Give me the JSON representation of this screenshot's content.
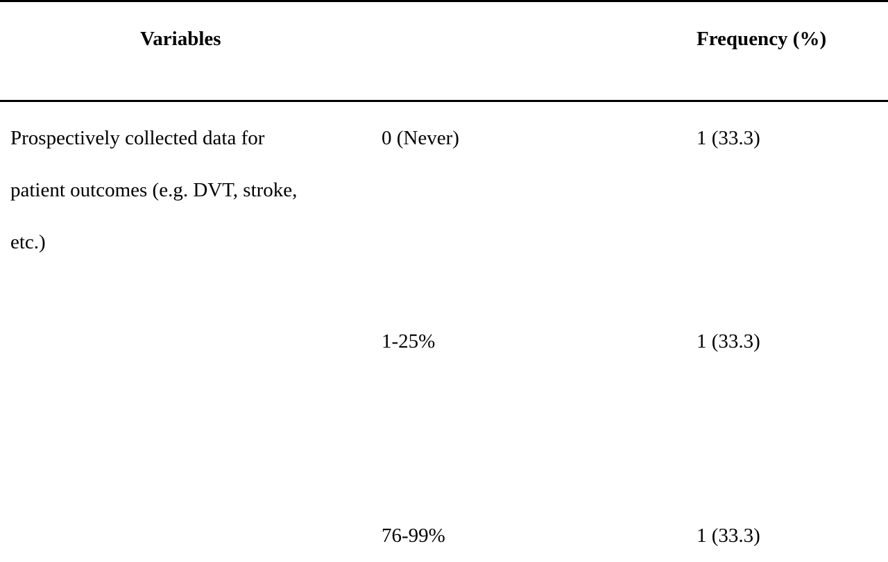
{
  "table": {
    "headers": {
      "variables": "Variables",
      "frequency": "Frequency (%)"
    },
    "variable": {
      "label_lines": [
        "Prospectively collected data for",
        "patient outcomes (e.g. DVT, stroke,",
        "etc.)"
      ]
    },
    "rows": [
      {
        "category": "0 (Never)",
        "frequency": "1 (33.3)"
      },
      {
        "category": "1-25%",
        "frequency": "1 (33.3)"
      },
      {
        "category": "76-99%",
        "frequency": "1 (33.3)"
      }
    ]
  }
}
